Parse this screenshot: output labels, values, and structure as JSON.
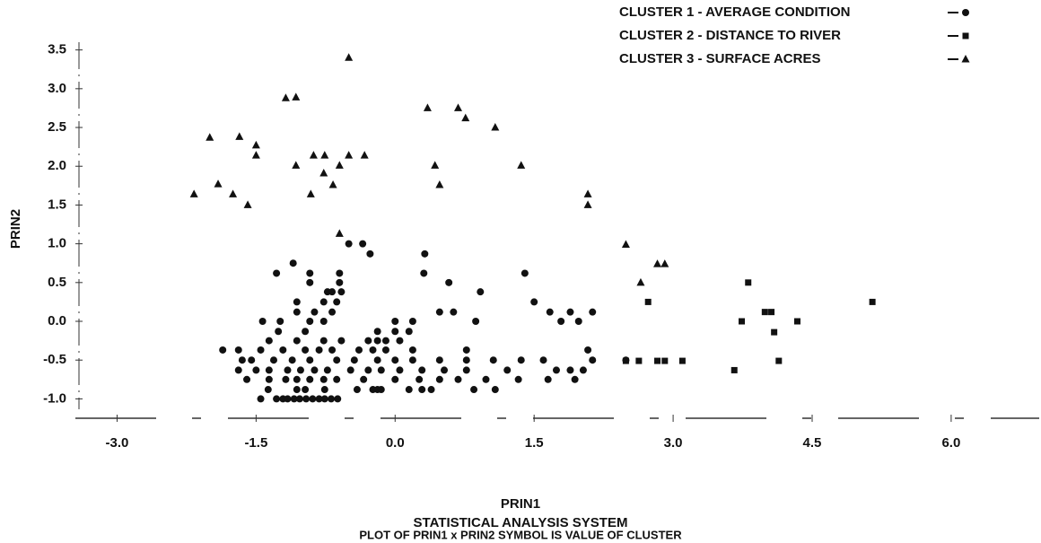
{
  "chart_data": {
    "type": "scatter",
    "title": "STATISTICAL ANALYSIS SYSTEM",
    "subtitle": "PLOT OF PRIN1 x PRIN2    SYMBOL IS VALUE OF CLUSTER",
    "x_label": "PRIN1",
    "y_label": "PRIN2",
    "xlim": [
      -3.45,
      6.95
    ],
    "ylim": [
      -1.25,
      3.6
    ],
    "xticks": [
      {
        "value": -3,
        "label": "-3.0"
      },
      -1.5,
      {
        "value": 0,
        "label": "0.0"
      },
      1.5,
      {
        "value": 3,
        "label": "3.0"
      },
      4.5,
      {
        "value": 6,
        "label": "6.0"
      }
    ],
    "yticks": [
      {
        "value": -1,
        "label": "-1.0"
      },
      -0.5,
      {
        "value": 0,
        "label": "0.0"
      },
      0.5,
      {
        "value": 1,
        "label": "1.0"
      },
      1.5,
      {
        "value": 2,
        "label": "2.0"
      },
      2.5,
      {
        "value": 3,
        "label": "3.0"
      },
      3.5
    ],
    "series": [
      {
        "name": "CLUSTER 1 - AVERAGE CONDITION",
        "color": "#111111",
        "marker": "circle",
        "x": [
          -1.45,
          -1.28,
          -1.21,
          -1.16,
          -1.09,
          -1.03,
          -0.96,
          -0.89,
          -0.82,
          -0.76,
          -0.69,
          -0.62,
          -1.37,
          -1.06,
          -0.97,
          -0.76,
          -0.41,
          -0.24,
          -0.19,
          -0.15,
          0.15,
          0.29,
          0.39,
          0.85,
          1.08,
          -1.6,
          -1.36,
          -1.18,
          -1.06,
          -0.92,
          -0.77,
          -0.63,
          -0.34,
          0.0,
          0.26,
          0.48,
          0.68,
          0.98,
          1.33,
          1.65,
          1.94,
          -1.69,
          -1.5,
          -1.36,
          -1.16,
          -1.02,
          -0.87,
          -0.73,
          -0.48,
          -0.29,
          -0.15,
          0.05,
          0.29,
          0.53,
          0.77,
          1.21,
          1.74,
          1.89,
          2.03,
          -1.65,
          -1.55,
          -1.31,
          -1.11,
          -0.92,
          -0.63,
          -0.44,
          -0.19,
          0.0,
          0.19,
          0.48,
          0.77,
          1.06,
          1.36,
          1.6,
          2.13,
          2.49,
          -1.86,
          -1.69,
          -1.45,
          -1.21,
          -0.97,
          -0.82,
          -0.68,
          -0.39,
          -0.24,
          -0.1,
          0.19,
          0.77,
          2.08,
          -1.36,
          -1.06,
          -0.77,
          -0.58,
          -0.29,
          -0.19,
          -0.1,
          0.05,
          -1.26,
          -0.97,
          -0.19,
          0.0,
          0.15,
          -1.43,
          -1.24,
          -0.92,
          -0.77,
          0.0,
          0.19,
          0.87,
          1.79,
          1.98,
          -1.06,
          -0.87,
          -0.68,
          0.48,
          0.63,
          1.67,
          1.89,
          2.13,
          -1.06,
          -0.77,
          -0.63,
          1.5,
          -0.73,
          -0.68,
          -0.58,
          0.92,
          -0.92,
          -0.6,
          0.58,
          -1.28,
          -0.92,
          -0.6,
          0.31,
          1.4,
          -1.1,
          -0.27,
          0.32,
          -0.5,
          -0.35
        ],
        "y": [
          -1,
          -1,
          -1,
          -1,
          -1,
          -1,
          -1,
          -1,
          -1,
          -1,
          -1,
          -1,
          -0.88,
          -0.88,
          -0.88,
          -0.88,
          -0.88,
          -0.88,
          -0.88,
          -0.88,
          -0.88,
          -0.88,
          -0.88,
          -0.88,
          -0.88,
          -0.75,
          -0.75,
          -0.75,
          -0.75,
          -0.75,
          -0.75,
          -0.75,
          -0.75,
          -0.75,
          -0.75,
          -0.75,
          -0.75,
          -0.75,
          -0.75,
          -0.75,
          -0.75,
          -0.63,
          -0.63,
          -0.63,
          -0.63,
          -0.63,
          -0.63,
          -0.63,
          -0.63,
          -0.63,
          -0.63,
          -0.63,
          -0.63,
          -0.63,
          -0.63,
          -0.63,
          -0.63,
          -0.63,
          -0.63,
          -0.5,
          -0.5,
          -0.5,
          -0.5,
          -0.5,
          -0.5,
          -0.5,
          -0.5,
          -0.5,
          -0.5,
          -0.5,
          -0.5,
          -0.5,
          -0.5,
          -0.5,
          -0.5,
          -0.5,
          -0.37,
          -0.37,
          -0.37,
          -0.37,
          -0.37,
          -0.37,
          -0.37,
          -0.37,
          -0.37,
          -0.37,
          -0.37,
          -0.37,
          -0.37,
          -0.25,
          -0.25,
          -0.25,
          -0.25,
          -0.25,
          -0.25,
          -0.25,
          -0.25,
          -0.13,
          -0.13,
          -0.13,
          -0.13,
          -0.13,
          0,
          0,
          0,
          0,
          0,
          0,
          0,
          0,
          0,
          0.12,
          0.12,
          0.12,
          0.12,
          0.12,
          0.12,
          0.12,
          0.12,
          0.25,
          0.25,
          0.25,
          0.25,
          0.38,
          0.38,
          0.38,
          0.38,
          0.5,
          0.5,
          0.5,
          0.62,
          0.62,
          0.62,
          0.62,
          0.62,
          0.75,
          0.87,
          0.87,
          1.0,
          1.0
        ]
      },
      {
        "name": "CLUSTER 2 - DISTANCE TO RIVER",
        "color": "#111111",
        "marker": "square",
        "x": [
          2.73,
          3.81,
          3.74,
          3.99,
          4.06,
          4.09,
          4.34,
          4.14,
          3.66,
          5.15,
          3.1,
          2.91,
          2.83,
          2.63,
          2.49
        ],
        "y": [
          0.25,
          0.5,
          0,
          0.12,
          0.12,
          -0.14,
          0,
          -0.51,
          -0.63,
          0.25,
          -0.51,
          -0.51,
          -0.51,
          -0.51,
          -0.51
        ]
      },
      {
        "name": "CLUSTER 3 - SURFACE ACRES",
        "color": "#111111",
        "marker": "triangle",
        "x": [
          -2.17,
          -2.0,
          -1.91,
          -1.75,
          -1.68,
          -1.59,
          -1.5,
          -1.5,
          -1.18,
          -1.07,
          -1.07,
          -0.91,
          -0.88,
          -0.77,
          -0.76,
          -0.67,
          -0.6,
          -0.5,
          -0.5,
          -0.33,
          0.35,
          0.43,
          0.48,
          0.68,
          0.76,
          1.08,
          1.36,
          2.08,
          2.08,
          2.49,
          2.65,
          2.83,
          2.91,
          -0.6
        ],
        "y": [
          1.64,
          2.37,
          1.77,
          1.64,
          2.38,
          1.5,
          2.27,
          2.14,
          2.88,
          2.89,
          2.01,
          1.64,
          2.14,
          1.91,
          2.14,
          1.76,
          2.01,
          3.4,
          2.14,
          2.14,
          2.75,
          2.01,
          1.76,
          2.75,
          2.62,
          2.5,
          2.01,
          1.64,
          1.5,
          0.99,
          0.5,
          0.74,
          0.74,
          1.13
        ]
      }
    ]
  }
}
